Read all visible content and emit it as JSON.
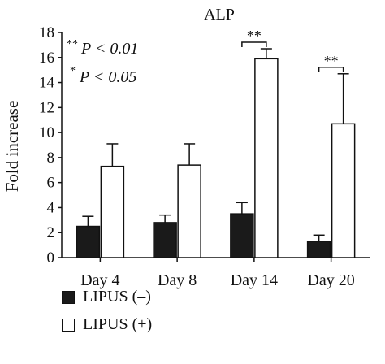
{
  "chart_data": {
    "type": "bar",
    "title": "ALP",
    "xlabel": "",
    "ylabel": "Fold increase",
    "ylim": [
      0,
      18
    ],
    "yticks": [
      0,
      2,
      4,
      6,
      8,
      10,
      12,
      14,
      16,
      18
    ],
    "categories": [
      "Day 4",
      "Day 8",
      "Day 14",
      "Day 20"
    ],
    "series": [
      {
        "name": "LIPUS (–)",
        "color": "#1a1a1a",
        "values": [
          2.5,
          2.8,
          3.5,
          1.3
        ],
        "errors": [
          0.8,
          0.6,
          0.9,
          0.5
        ]
      },
      {
        "name": "LIPUS (+)",
        "color": "#ffffff",
        "values": [
          7.3,
          7.4,
          15.9,
          10.7
        ],
        "errors": [
          1.8,
          1.7,
          0.8,
          4.0
        ]
      }
    ],
    "significance": [
      {
        "category": "Day 14",
        "label": "**"
      },
      {
        "category": "Day 20",
        "label": "**"
      }
    ],
    "annotations": [
      {
        "stars": "**",
        "text": "P < 0.01"
      },
      {
        "stars": "*",
        "text": "P < 0.05"
      }
    ],
    "legend_position": "bottom-left",
    "grid": false
  }
}
